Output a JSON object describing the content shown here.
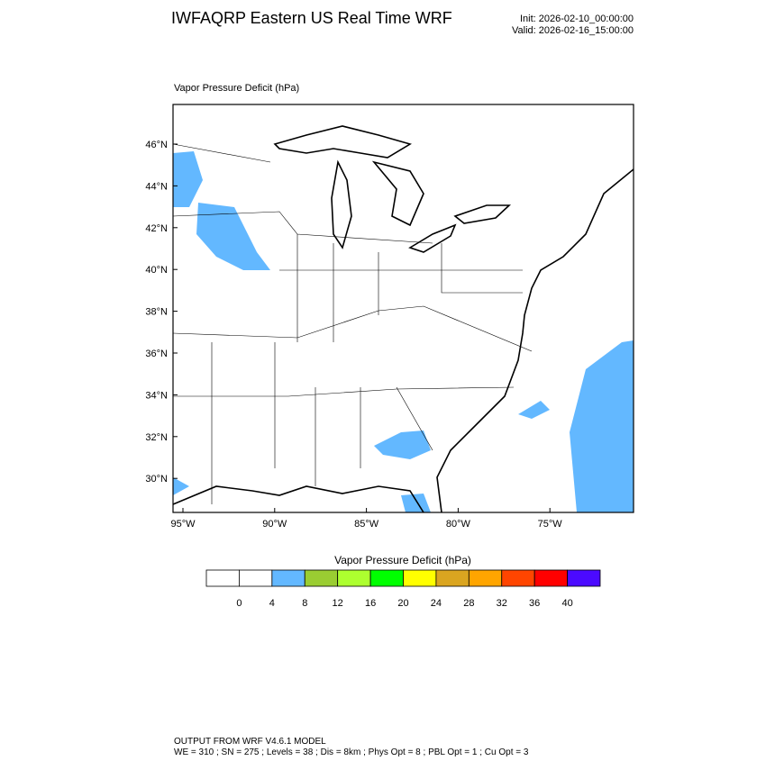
{
  "header": {
    "title": "IWFAQRP Eastern US Real Time WRF",
    "init": "Init: 2026-02-10_00:00:00",
    "valid": "Valid: 2026-02-16_15:00:00"
  },
  "map": {
    "label": "Vapor Pressure Deficit   (hPa)",
    "lat_labels": [
      "46°N",
      "44°N",
      "42°N",
      "40°N",
      "38°N",
      "36°N",
      "34°N",
      "32°N",
      "30°N"
    ],
    "lon_labels": [
      "95°W",
      "90°W",
      "85°W",
      "80°W",
      "75°W"
    ]
  },
  "colorbar": {
    "title": "Vapor Pressure Deficit  (hPa)",
    "levels": [
      0,
      4,
      8,
      12,
      16,
      20,
      24,
      28,
      32,
      36,
      40
    ],
    "colors": [
      "#ffffff",
      "#ffffff",
      "#63b8ff",
      "#9acd32",
      "#adff2f",
      "#00ff00",
      "#ffff00",
      "#daa520",
      "#ffa500",
      "#ff4500",
      "#ff0000",
      "#4b0aff"
    ]
  },
  "footer": {
    "line1": "OUTPUT FROM WRF V4.6.1 MODEL",
    "line2": "WE = 310 ; SN = 275 ; Levels = 38 ; Dis = 8km ; Phys Opt = 8 ; PBL Opt = 1 ; Cu Opt = 3"
  }
}
